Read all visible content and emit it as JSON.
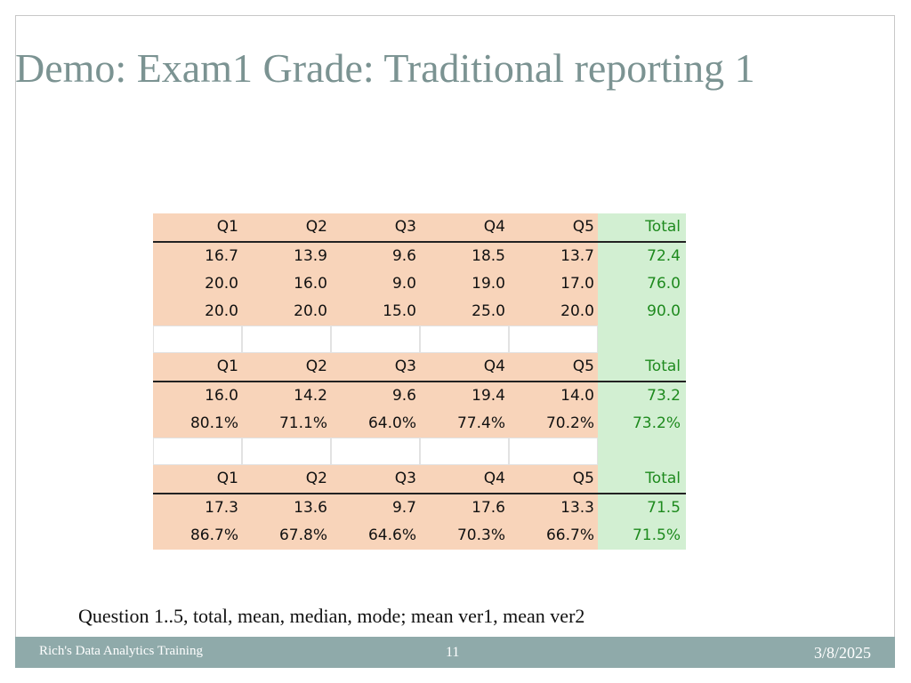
{
  "slide": {
    "title": "Demo: Exam1 Grade: Traditional reporting 1",
    "caption": "Question 1..5, total, mean, median, mode; mean ver1, mean ver2",
    "footer": {
      "left": "Rich's Data Analytics Training",
      "page_number": "11",
      "date": "3/8/2025"
    }
  },
  "colors": {
    "question_cells": "#f8d4ba",
    "total_cells": "#d2efd2",
    "total_text": "#1e8a1e",
    "title": "#7b9392",
    "footer_bar": "#8faaaa"
  },
  "table": {
    "header": [
      "Q1",
      "Q2",
      "Q3",
      "Q4",
      "Q5",
      "Total"
    ],
    "block1": [
      [
        "16.7",
        "13.9",
        "9.6",
        "18.5",
        "13.7",
        "72.4"
      ],
      [
        "20.0",
        "16.0",
        "9.0",
        "19.0",
        "17.0",
        "76.0"
      ],
      [
        "20.0",
        "20.0",
        "15.0",
        "25.0",
        "20.0",
        "90.0"
      ]
    ],
    "block2": [
      [
        "16.0",
        "14.2",
        "9.6",
        "19.4",
        "14.0",
        "73.2"
      ],
      [
        "80.1%",
        "71.1%",
        "64.0%",
        "77.4%",
        "70.2%",
        "73.2%"
      ]
    ],
    "block3": [
      [
        "17.3",
        "13.6",
        "9.7",
        "17.6",
        "13.3",
        "71.5"
      ],
      [
        "86.7%",
        "67.8%",
        "64.6%",
        "70.3%",
        "66.7%",
        "71.5%"
      ]
    ]
  }
}
